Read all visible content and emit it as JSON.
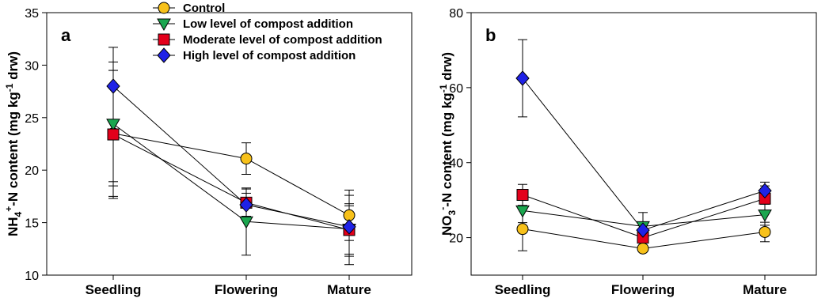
{
  "chart_data": [
    {
      "type": "line",
      "panel_label": "a",
      "ylabel_main": "NH",
      "ylabel_sub": "4",
      "ylabel_sup": "+",
      "ylabel_mid": "-N content (mg kg",
      "ylabel_exp": "-1",
      "ylabel_end": " drw)",
      "categories": [
        "Seedling",
        "Flowering",
        "Mature"
      ],
      "ylim": [
        10,
        35
      ],
      "yticks": [
        10,
        15,
        20,
        25,
        30,
        35
      ],
      "legend_position": "top-center",
      "series": [
        {
          "name": "Control",
          "marker": "circle",
          "color": "#F7C11A",
          "values": [
            23.5,
            21.1,
            15.7
          ],
          "err_low": [
            17.5,
            19.6,
            13.3
          ],
          "err_high": [
            29.5,
            22.6,
            18.1
          ]
        },
        {
          "name": "Low level of compost addition",
          "marker": "triangle-down",
          "color": "#1BA64F",
          "values": [
            24.4,
            15.1,
            14.4
          ],
          "err_low": [
            18.5,
            11.9,
            12.0
          ],
          "err_high": [
            30.3,
            18.3,
            16.8
          ]
        },
        {
          "name": "Moderate level of compost addition",
          "marker": "square",
          "color": "#E3001B",
          "values": [
            23.4,
            16.9,
            14.3
          ],
          "err_low": [
            17.3,
            15.6,
            11.0
          ],
          "err_high": [
            29.5,
            18.2,
            17.6
          ]
        },
        {
          "name": "High level of compost addition",
          "marker": "diamond",
          "color": "#1F22E6",
          "values": [
            28.0,
            16.7,
            14.6
          ],
          "err_low": [
            18.9,
            15.6,
            11.8
          ],
          "err_high": [
            31.7,
            17.8,
            16.6
          ]
        }
      ]
    },
    {
      "type": "line",
      "panel_label": "b",
      "ylabel_main": "NO",
      "ylabel_sub": "3",
      "ylabel_sup": "-",
      "ylabel_mid": "-N content (mg kg",
      "ylabel_exp": "-1",
      "ylabel_end": " drw)",
      "categories": [
        "Seedling",
        "Flowering",
        "Mature"
      ],
      "ylim": [
        10,
        80
      ],
      "yticks": [
        20,
        40,
        60,
        80
      ],
      "series": [
        {
          "name": "Control",
          "marker": "circle",
          "color": "#F7C11A",
          "values": [
            22.3,
            17.1,
            21.5
          ],
          "err_low": [
            16.5,
            16.2,
            18.9
          ],
          "err_high": [
            28.1,
            18.0,
            24.1
          ]
        },
        {
          "name": "Low level of compost addition",
          "marker": "triangle-down",
          "color": "#1BA64F",
          "values": [
            27.2,
            23.0,
            26.1
          ],
          "err_low": [
            24.0,
            19.3,
            23.3
          ],
          "err_high": [
            30.4,
            26.7,
            28.9
          ]
        },
        {
          "name": "Moderate level of compost addition",
          "marker": "square",
          "color": "#E3001B",
          "values": [
            31.4,
            20.0,
            30.4
          ],
          "err_low": [
            28.6,
            18.0,
            27.0
          ],
          "err_high": [
            34.2,
            22.0,
            33.8
          ]
        },
        {
          "name": "High level of compost addition",
          "marker": "diamond",
          "color": "#1F22E6",
          "values": [
            62.5,
            22.0,
            32.5
          ],
          "err_low": [
            52.2,
            19.8,
            30.2
          ],
          "err_high": [
            72.8,
            24.2,
            34.8
          ]
        }
      ]
    }
  ]
}
